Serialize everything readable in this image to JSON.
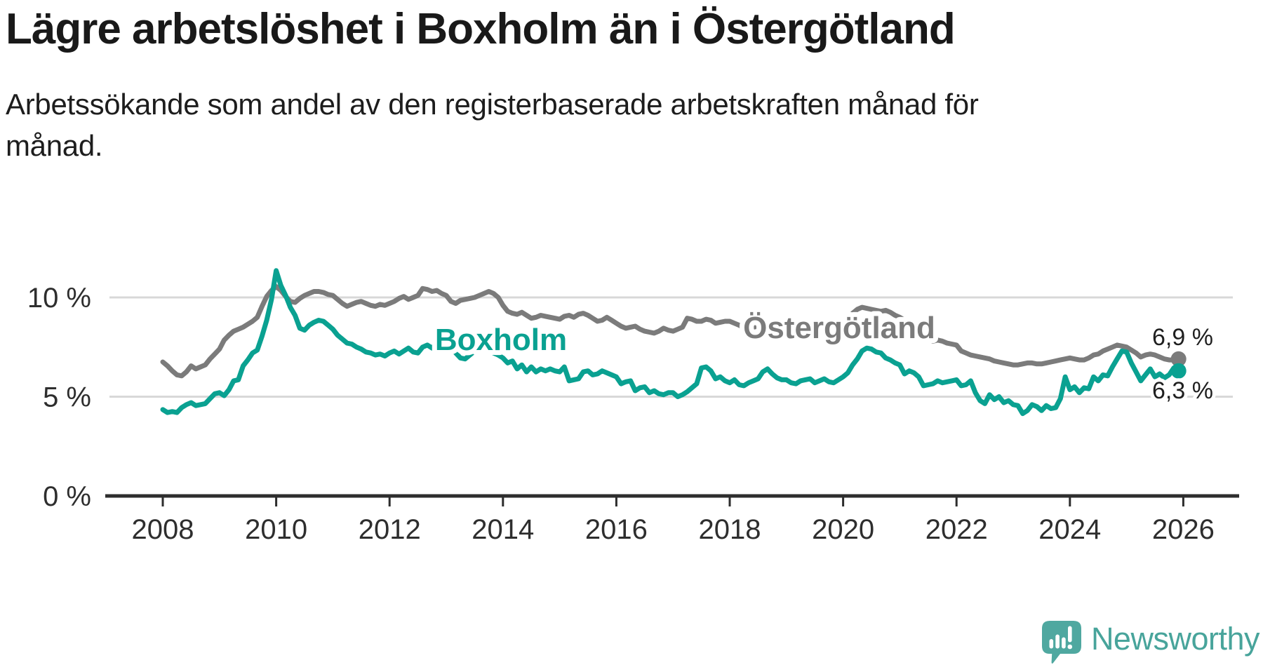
{
  "header": {
    "title": "Lägre arbetslöshet i Boxholm än i Östergötland",
    "subtitle": "Arbetssökande som andel av den registerbaserade arbetskraften månad för månad."
  },
  "colors": {
    "boxholm_line": "#0aa191",
    "ostergotland_line": "#7b7b7b",
    "gridline": "#d8d8d8",
    "axis": "#2d2d2d",
    "tick_label": "#2e2e2e",
    "value_label": "#1f1f1f",
    "halo": "#ffffff",
    "brand_teal": "#4fa8a0"
  },
  "chart_data": {
    "type": "line",
    "title": "",
    "xlabel": "",
    "ylabel": "",
    "x_unit": "months since January 2008",
    "start_year": 2008,
    "step_months": 1,
    "grid": "horizontal-only",
    "legend": "inline-series-labels",
    "ylim": [
      0,
      12.4
    ],
    "xlim_years": [
      2007.1,
      2026.9
    ],
    "xticks": [
      2008,
      2010,
      2012,
      2014,
      2016,
      2018,
      2020,
      2022,
      2024,
      2026
    ],
    "yticks": [
      {
        "value": 0,
        "label": "0 %"
      },
      {
        "value": 5,
        "label": "5 %"
      },
      {
        "value": 10,
        "label": "10 %"
      }
    ],
    "series": [
      {
        "name": "Östergötland",
        "color": "#7b7b7b",
        "end_value": 6.9,
        "end_label": "6,9 %",
        "values": [
          6.75,
          6.55,
          6.3,
          6.1,
          6.05,
          6.25,
          6.55,
          6.4,
          6.5,
          6.6,
          6.9,
          7.15,
          7.4,
          7.85,
          8.1,
          8.3,
          8.4,
          8.5,
          8.65,
          8.8,
          9.0,
          9.55,
          10.05,
          10.35,
          10.55,
          10.35,
          10.05,
          9.8,
          9.75,
          9.95,
          10.1,
          10.2,
          10.3,
          10.3,
          10.25,
          10.15,
          10.1,
          9.9,
          9.7,
          9.55,
          9.65,
          9.75,
          9.8,
          9.7,
          9.6,
          9.55,
          9.65,
          9.6,
          9.7,
          9.8,
          9.95,
          10.05,
          9.9,
          10.0,
          10.1,
          10.45,
          10.4,
          10.3,
          10.35,
          10.2,
          10.1,
          9.8,
          9.7,
          9.85,
          9.9,
          9.95,
          10.0,
          10.1,
          10.2,
          10.3,
          10.2,
          10.0,
          9.6,
          9.3,
          9.2,
          9.15,
          9.25,
          9.1,
          8.95,
          9.0,
          9.1,
          9.05,
          9.0,
          8.95,
          8.9,
          9.05,
          9.1,
          9.0,
          9.15,
          9.2,
          9.1,
          8.95,
          8.8,
          8.85,
          9.0,
          8.85,
          8.7,
          8.55,
          8.45,
          8.5,
          8.55,
          8.4,
          8.3,
          8.25,
          8.2,
          8.3,
          8.45,
          8.35,
          8.3,
          8.4,
          8.5,
          8.95,
          8.9,
          8.8,
          8.8,
          8.9,
          8.85,
          8.7,
          8.75,
          8.8,
          8.8,
          8.7,
          8.6,
          8.45,
          8.4,
          8.5,
          8.55,
          8.45,
          8.35,
          8.4,
          8.45,
          8.5,
          8.5,
          8.45,
          8.55,
          8.6,
          8.5,
          8.55,
          8.5,
          8.55,
          8.6,
          8.55,
          8.6,
          8.7,
          8.75,
          8.9,
          9.2,
          9.4,
          9.5,
          9.45,
          9.4,
          9.35,
          9.3,
          9.35,
          9.25,
          9.1,
          9.0,
          8.85,
          8.7,
          8.55,
          8.4,
          8.2,
          7.9,
          7.8,
          7.85,
          7.8,
          7.7,
          7.65,
          7.6,
          7.3,
          7.2,
          7.1,
          7.05,
          7.0,
          6.95,
          6.9,
          6.8,
          6.75,
          6.7,
          6.65,
          6.6,
          6.6,
          6.65,
          6.7,
          6.7,
          6.65,
          6.65,
          6.7,
          6.75,
          6.8,
          6.85,
          6.9,
          6.95,
          6.9,
          6.85,
          6.85,
          6.95,
          7.1,
          7.15,
          7.3,
          7.4,
          7.5,
          7.6,
          7.55,
          7.5,
          7.35,
          7.2,
          7.0,
          7.1,
          7.15,
          7.1,
          7.0,
          6.9,
          6.85,
          6.85,
          6.9
        ]
      },
      {
        "name": "Boxholm",
        "color": "#0aa191",
        "end_value": 6.3,
        "end_label": "6,3 %",
        "values": [
          4.35,
          4.2,
          4.25,
          4.2,
          4.45,
          4.6,
          4.7,
          4.55,
          4.6,
          4.65,
          4.9,
          5.15,
          5.2,
          5.05,
          5.35,
          5.8,
          5.85,
          6.55,
          6.85,
          7.2,
          7.35,
          8.05,
          8.85,
          9.9,
          11.35,
          10.6,
          10.1,
          9.5,
          9.1,
          8.45,
          8.35,
          8.6,
          8.75,
          8.85,
          8.8,
          8.6,
          8.4,
          8.1,
          7.9,
          7.7,
          7.65,
          7.5,
          7.4,
          7.25,
          7.2,
          7.1,
          7.15,
          7.05,
          7.2,
          7.3,
          7.15,
          7.3,
          7.45,
          7.25,
          7.2,
          7.5,
          7.6,
          7.45,
          7.7,
          8.0,
          8.0,
          7.7,
          7.2,
          6.95,
          6.9,
          7.1,
          7.3,
          7.5,
          7.45,
          7.3,
          7.2,
          7.1,
          6.95,
          6.7,
          6.8,
          6.4,
          6.6,
          6.25,
          6.5,
          6.25,
          6.4,
          6.3,
          6.4,
          6.3,
          6.25,
          6.5,
          5.8,
          5.85,
          5.9,
          6.25,
          6.3,
          6.1,
          6.15,
          6.3,
          6.2,
          6.1,
          6.0,
          5.65,
          5.75,
          5.8,
          5.3,
          5.45,
          5.5,
          5.2,
          5.3,
          5.15,
          5.1,
          5.2,
          5.2,
          5.0,
          5.1,
          5.25,
          5.45,
          5.65,
          6.45,
          6.5,
          6.3,
          5.9,
          6.0,
          5.8,
          5.7,
          5.85,
          5.6,
          5.55,
          5.7,
          5.8,
          5.9,
          6.25,
          6.4,
          6.15,
          5.95,
          5.85,
          5.85,
          5.7,
          5.65,
          5.8,
          5.85,
          5.9,
          5.7,
          5.8,
          5.9,
          5.75,
          5.7,
          5.85,
          6.0,
          6.2,
          6.6,
          6.9,
          7.3,
          7.45,
          7.4,
          7.25,
          7.2,
          6.95,
          6.85,
          6.7,
          6.6,
          6.15,
          6.3,
          6.2,
          6.0,
          5.55,
          5.6,
          5.65,
          5.8,
          5.7,
          5.75,
          5.8,
          5.85,
          5.55,
          5.6,
          5.8,
          5.2,
          4.8,
          4.65,
          5.1,
          4.85,
          5.0,
          4.7,
          4.8,
          4.6,
          4.55,
          4.15,
          4.3,
          4.6,
          4.5,
          4.3,
          4.55,
          4.4,
          4.45,
          4.9,
          6.0,
          5.35,
          5.5,
          5.2,
          5.45,
          5.4,
          6.0,
          5.8,
          6.1,
          6.05,
          6.5,
          6.9,
          7.3,
          7.25,
          6.7,
          6.25,
          5.8,
          6.1,
          6.4,
          6.0,
          6.15,
          5.95,
          6.1,
          6.45,
          6.3
        ]
      }
    ]
  },
  "branding": {
    "logo_text": "Newsworthy"
  }
}
